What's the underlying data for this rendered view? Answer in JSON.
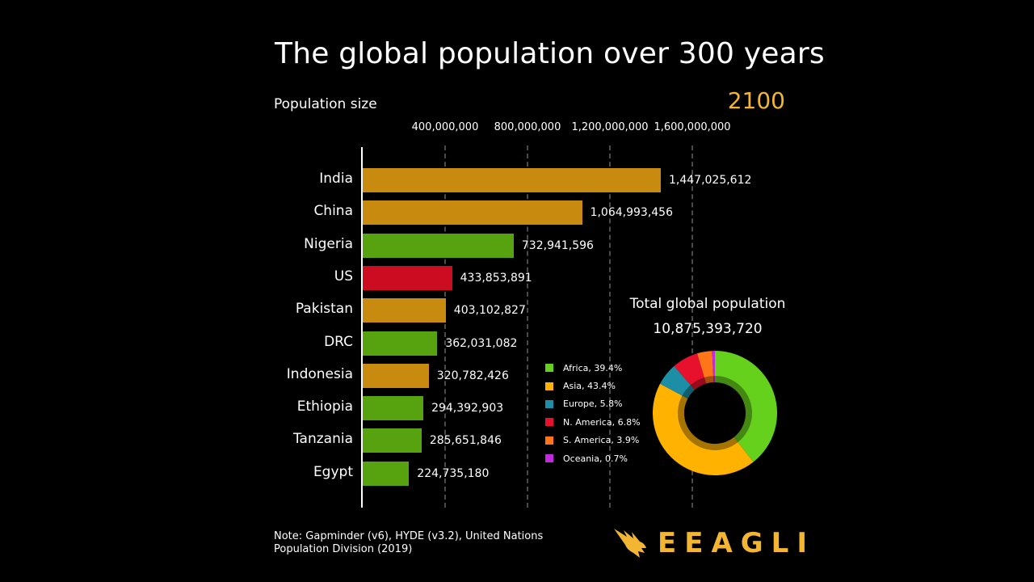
{
  "header": {
    "title": "The global population over 300 years",
    "subtitle": "Population size",
    "year": "2100"
  },
  "chart_data": [
    {
      "type": "bar",
      "orientation": "horizontal",
      "xlabel": "Population size",
      "xlim": [
        0,
        1700000000
      ],
      "xticks": [
        400000000,
        800000000,
        1200000000,
        1600000000
      ],
      "xtick_labels": [
        "400,000,000",
        "800,000,000",
        "1,200,000,000",
        "1,600,000,000"
      ],
      "grid": true,
      "categories": [
        "India",
        "China",
        "Nigeria",
        "US",
        "Pakistan",
        "DRC",
        "Indonesia",
        "Ethiopia",
        "Tanzania",
        "Egypt"
      ],
      "values": [
        1447025612,
        1064993456,
        732941596,
        433853891,
        403102827,
        362031082,
        320782426,
        294392903,
        285651846,
        224735180
      ],
      "value_labels": [
        "1,447,025,612",
        "1,064,993,456",
        "732,941,596",
        "433,853,891",
        "403,102,827",
        "362,031,082",
        "320,782,426",
        "294,392,903",
        "285,651,846",
        "224,735,180"
      ],
      "bar_regions": [
        "Asia",
        "Asia",
        "Africa",
        "N. America",
        "Asia",
        "Africa",
        "Asia",
        "Africa",
        "Africa",
        "Africa"
      ]
    },
    {
      "type": "pie",
      "style": "donut",
      "title": "Total global population",
      "total": "10,875,393,720",
      "slices": [
        {
          "label": "Africa",
          "value": 39.4,
          "legend": "Africa, 39.4%",
          "color": "#66d11c"
        },
        {
          "label": "Asia",
          "value": 43.4,
          "legend": "Asia, 43.4%",
          "color": "#ffb300"
        },
        {
          "label": "Europe",
          "value": 5.8,
          "legend": "Europe, 5.8%",
          "color": "#1c8fa6"
        },
        {
          "label": "N. America",
          "value": 6.8,
          "legend": "N. America, 6.8%",
          "color": "#e8112d"
        },
        {
          "label": "S. America",
          "value": 3.9,
          "legend": "S. America, 3.9%",
          "color": "#ff7518"
        },
        {
          "label": "Oceania",
          "value": 0.7,
          "legend": "Oceania, 0.7%",
          "color": "#c32ae0"
        }
      ],
      "legend_position": "left"
    }
  ],
  "colors": {
    "Africa_bar": "#56a30f",
    "Asia_bar": "#c98b0f",
    "N. America_bar": "#cc0c20",
    "accent": "#f2b632"
  },
  "footer": {
    "note_line1": "Note: Gapminder (v6), HYDE (v3.2), United Nations",
    "note_line2": "Population Division (2019)",
    "logo_text": "EEAGLI",
    "logo_icon": "eagle-icon"
  }
}
